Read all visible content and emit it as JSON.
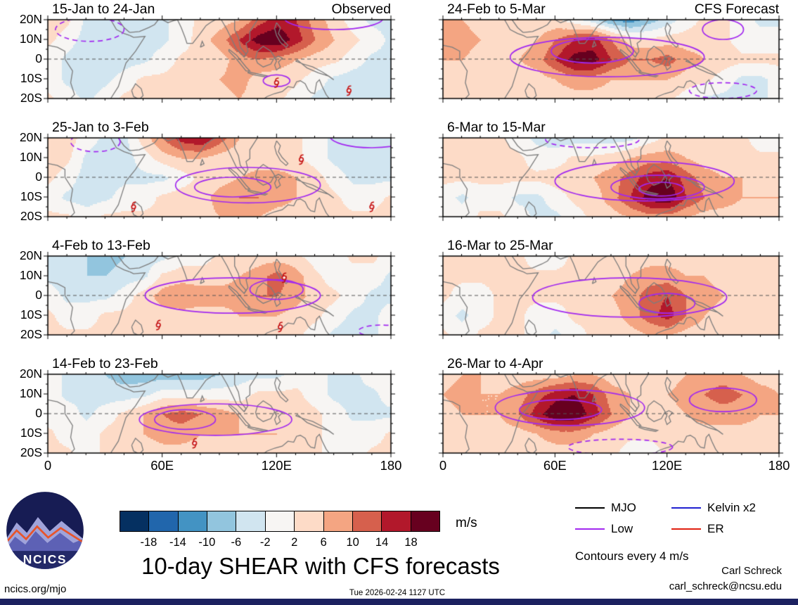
{
  "title": "10-day SHEAR with CFS forecasts",
  "axes": {
    "y_tick_labels": [
      "20N",
      "10N",
      "0",
      "10S",
      "20S"
    ],
    "x_tick_labels": [
      "0",
      "60E",
      "120E",
      "180"
    ]
  },
  "colorbar": {
    "tick_labels": [
      "-18",
      "-14",
      "-10",
      "-6",
      "-2",
      "2",
      "6",
      "10",
      "14",
      "18"
    ],
    "units": "m/s",
    "colors": [
      "#053061",
      "#2166ac",
      "#4393c3",
      "#92c5de",
      "#d1e5f0",
      "#f7f5f3",
      "#fddbc7",
      "#f4a582",
      "#d6604d",
      "#b2182b",
      "#67001f"
    ]
  },
  "legend": {
    "items": [
      {
        "label": "MJO",
        "color": "#000000"
      },
      {
        "label": "Kelvin x2",
        "color": "#2020d0"
      },
      {
        "label": "Low",
        "color": "#a228f0"
      },
      {
        "label": "ER",
        "color": "#e02010"
      }
    ],
    "note": "Contours every 4 m/s"
  },
  "footer": {
    "site": "ncics.org/mjo",
    "timestamp": "Tue 2026-02-24 1127 UTC",
    "credit_name": "Carl Schreck",
    "credit_email": "carl_schreck@ncsu.edu",
    "logo_text": "NCICS"
  },
  "chart_data": {
    "type": "heatmap",
    "units": "m/s",
    "lon_range": [
      0,
      180
    ],
    "lat_range": [
      -20,
      20
    ],
    "lon_step_deg": 10,
    "lat_step_deg": 10,
    "thresholds": [
      -18,
      -14,
      -10,
      -6,
      -2,
      2,
      6,
      10,
      14,
      18
    ],
    "contour_interval_mps": 4,
    "panels": [
      {
        "title": "15-Jan to 24-Jan",
        "corner_label": "Observed",
        "grid": [
          [
            4,
            3,
            -3,
            -4,
            -4,
            -3,
            -3,
            0,
            3,
            4,
            6,
            12,
            16,
            14,
            8,
            4,
            0,
            -3,
            -3
          ],
          [
            3,
            0,
            -4,
            -6,
            -6,
            -4,
            -3,
            0,
            4,
            8,
            14,
            20,
            22,
            16,
            10,
            6,
            3,
            0,
            -3
          ],
          [
            0,
            -3,
            -6,
            -6,
            -4,
            -3,
            0,
            3,
            3,
            4,
            8,
            10,
            8,
            6,
            4,
            3,
            0,
            -3,
            -3
          ],
          [
            0,
            -3,
            -4,
            -3,
            0,
            3,
            3,
            3,
            4,
            6,
            8,
            4,
            4,
            3,
            0,
            -3,
            -4,
            -4,
            -4
          ],
          [
            3,
            0,
            -3,
            0,
            3,
            3,
            3,
            4,
            4,
            4,
            6,
            4,
            3,
            0,
            -3,
            -4,
            -6,
            -4,
            -3
          ]
        ],
        "low_contours": [
          {
            "lon": 22,
            "lat": 15,
            "rlon": 18,
            "rlat": 6,
            "dashed": true
          },
          {
            "lon": 150,
            "lat": 21,
            "rlon": 26,
            "rlat": 6,
            "dashed": false
          },
          {
            "lon": 120,
            "lat": -11,
            "rlon": 7,
            "rlat": 3,
            "dashed": false
          }
        ],
        "storms": [
          [
            120,
            -12
          ],
          [
            158,
            -16
          ]
        ]
      },
      {
        "title": "25-Jan to 3-Feb",
        "corner_label": "",
        "grid": [
          [
            6,
            4,
            0,
            -3,
            -3,
            4,
            10,
            16,
            18,
            12,
            6,
            3,
            3,
            3,
            0,
            -3,
            -4,
            -4,
            -4
          ],
          [
            4,
            3,
            -3,
            -4,
            -4,
            0,
            4,
            6,
            6,
            4,
            3,
            3,
            3,
            3,
            0,
            -3,
            -4,
            -4,
            -3
          ],
          [
            3,
            0,
            -4,
            -4,
            -3,
            -3,
            -3,
            0,
            3,
            4,
            6,
            8,
            8,
            6,
            4,
            0,
            -3,
            -3,
            -3
          ],
          [
            0,
            -3,
            -4,
            -3,
            0,
            0,
            3,
            4,
            4,
            8,
            10,
            10,
            8,
            6,
            4,
            3,
            0,
            0,
            3
          ],
          [
            3,
            3,
            0,
            3,
            3,
            3,
            3,
            3,
            4,
            6,
            6,
            6,
            4,
            4,
            4,
            3,
            3,
            3,
            4
          ]
        ],
        "low_contours": [
          {
            "lon": 25,
            "lat": 18,
            "rlon": 13,
            "rlat": 5,
            "dashed": true
          },
          {
            "lon": 105,
            "lat": -4,
            "rlon": 38,
            "rlat": 9,
            "dashed": false
          },
          {
            "lon": 97,
            "lat": -5,
            "rlon": 20,
            "rlat": 5,
            "dashed": false
          },
          {
            "lon": 170,
            "lat": 21,
            "rlon": 22,
            "rlat": 6,
            "dashed": false
          }
        ],
        "storms": [
          [
            45,
            -15
          ],
          [
            133,
            9
          ],
          [
            170,
            -15
          ]
        ]
      },
      {
        "title": "4-Feb to 13-Feb",
        "corner_label": "",
        "grid": [
          [
            -3,
            -4,
            -6,
            -8,
            -6,
            -4,
            -3,
            0,
            0,
            3,
            3,
            4,
            4,
            3,
            0,
            0,
            3,
            3,
            0
          ],
          [
            -3,
            -4,
            -6,
            -6,
            -4,
            -3,
            3,
            4,
            4,
            4,
            6,
            8,
            12,
            8,
            3,
            0,
            0,
            0,
            -3
          ],
          [
            0,
            -3,
            -3,
            -3,
            0,
            4,
            8,
            10,
            8,
            8,
            8,
            10,
            10,
            8,
            4,
            3,
            0,
            -3,
            -3
          ],
          [
            3,
            0,
            0,
            3,
            3,
            4,
            4,
            4,
            4,
            4,
            6,
            6,
            6,
            4,
            3,
            0,
            -3,
            -3,
            0
          ],
          [
            3,
            3,
            3,
            3,
            3,
            3,
            3,
            3,
            3,
            4,
            4,
            4,
            3,
            3,
            0,
            -3,
            -4,
            -3,
            0
          ]
        ],
        "low_contours": [
          {
            "lon": 97,
            "lat": 0,
            "rlon": 46,
            "rlat": 9,
            "dashed": false
          },
          {
            "lon": 120,
            "lat": 3,
            "rlon": 14,
            "rlat": 5,
            "dashed": false
          },
          {
            "lon": 175,
            "lat": -18,
            "rlon": 12,
            "rlat": 3,
            "dashed": true
          }
        ],
        "storms": [
          [
            58,
            -15
          ],
          [
            124,
            9
          ],
          [
            122,
            -16
          ]
        ]
      },
      {
        "title": "14-Feb to 23-Feb",
        "corner_label": "",
        "grid": [
          [
            0,
            -3,
            -4,
            -6,
            -8,
            -8,
            -8,
            -8,
            -8,
            -6,
            -4,
            -3,
            -3,
            0,
            0,
            -3,
            -3,
            0,
            0
          ],
          [
            0,
            -3,
            -3,
            -4,
            -4,
            -3,
            0,
            0,
            0,
            0,
            0,
            3,
            3,
            3,
            0,
            -3,
            -3,
            -3,
            0
          ],
          [
            0,
            0,
            -3,
            0,
            3,
            6,
            10,
            12,
            10,
            8,
            6,
            4,
            4,
            4,
            3,
            0,
            -3,
            -3,
            -3
          ],
          [
            3,
            0,
            0,
            3,
            4,
            6,
            8,
            8,
            6,
            6,
            6,
            6,
            6,
            4,
            3,
            0,
            0,
            0,
            3
          ],
          [
            3,
            3,
            0,
            3,
            3,
            3,
            4,
            4,
            4,
            4,
            4,
            4,
            4,
            3,
            3,
            0,
            0,
            3,
            3
          ]
        ],
        "low_contours": [
          {
            "lon": 88,
            "lat": -3,
            "rlon": 40,
            "rlat": 8,
            "dashed": false
          },
          {
            "lon": 72,
            "lat": -3,
            "rlon": 16,
            "rlat": 5,
            "dashed": false
          }
        ],
        "storms": [
          [
            77,
            -15
          ]
        ]
      },
      {
        "title": "24-Feb to 5-Mar",
        "corner_label": "CFS Forecast",
        "grid": [
          [
            6,
            6,
            4,
            3,
            3,
            3,
            3,
            0,
            -4,
            -10,
            -12,
            -8,
            -4,
            0,
            3,
            3,
            0,
            -3,
            -3
          ],
          [
            8,
            8,
            6,
            4,
            4,
            6,
            10,
            14,
            16,
            10,
            4,
            3,
            4,
            4,
            4,
            3,
            0,
            0,
            0
          ],
          [
            6,
            6,
            4,
            4,
            6,
            8,
            14,
            20,
            20,
            14,
            10,
            10,
            12,
            8,
            6,
            4,
            3,
            3,
            3
          ],
          [
            4,
            3,
            3,
            3,
            3,
            4,
            6,
            8,
            8,
            6,
            6,
            6,
            6,
            4,
            3,
            0,
            -3,
            -3,
            0
          ],
          [
            3,
            3,
            3,
            3,
            3,
            3,
            4,
            4,
            4,
            4,
            3,
            3,
            3,
            0,
            -3,
            -3,
            -4,
            -3,
            0
          ]
        ],
        "low_contours": [
          {
            "lon": 88,
            "lat": 1,
            "rlon": 52,
            "rlat": 10,
            "dashed": false
          },
          {
            "lon": 80,
            "lat": 4,
            "rlon": 22,
            "rlat": 6,
            "dashed": false
          },
          {
            "lon": 150,
            "lat": -16,
            "rlon": 18,
            "rlat": 4,
            "dashed": true
          },
          {
            "lon": 150,
            "lat": 15,
            "rlon": 11,
            "rlat": 5,
            "dashed": false
          }
        ],
        "storms": []
      },
      {
        "title": "6-Mar to 15-Mar",
        "corner_label": "",
        "grid": [
          [
            4,
            6,
            4,
            3,
            0,
            -3,
            -4,
            -4,
            -4,
            -4,
            -3,
            0,
            3,
            3,
            3,
            3,
            3,
            0,
            0
          ],
          [
            4,
            4,
            4,
            3,
            3,
            0,
            0,
            3,
            3,
            4,
            6,
            8,
            8,
            6,
            4,
            4,
            3,
            3,
            3
          ],
          [
            3,
            3,
            3,
            3,
            3,
            3,
            4,
            4,
            6,
            8,
            12,
            16,
            18,
            12,
            8,
            6,
            6,
            4,
            4
          ],
          [
            0,
            -3,
            0,
            0,
            -3,
            -3,
            0,
            3,
            4,
            8,
            14,
            20,
            22,
            14,
            10,
            8,
            6,
            6,
            6
          ],
          [
            0,
            0,
            3,
            3,
            0,
            -3,
            -3,
            0,
            3,
            4,
            6,
            8,
            8,
            6,
            4,
            4,
            4,
            4,
            4
          ]
        ],
        "low_contours": [
          {
            "lon": 108,
            "lat": -2,
            "rlon": 48,
            "rlat": 10,
            "dashed": false
          },
          {
            "lon": 115,
            "lat": -5,
            "rlon": 25,
            "rlat": 6,
            "dashed": false
          },
          {
            "lon": 117,
            "lat": -6,
            "rlon": 12,
            "rlat": 3.5,
            "dashed": false
          },
          {
            "lon": 80,
            "lat": 19,
            "rlon": 25,
            "rlat": 4,
            "dashed": true
          }
        ],
        "storms": []
      },
      {
        "title": "16-Mar to 25-Mar",
        "corner_label": "",
        "grid": [
          [
            3,
            4,
            4,
            3,
            3,
            0,
            0,
            3,
            3,
            3,
            4,
            4,
            4,
            4,
            3,
            3,
            3,
            3,
            3
          ],
          [
            3,
            3,
            3,
            3,
            3,
            3,
            3,
            3,
            3,
            4,
            6,
            8,
            8,
            6,
            6,
            4,
            3,
            3,
            3
          ],
          [
            3,
            0,
            0,
            3,
            3,
            3,
            3,
            3,
            4,
            6,
            8,
            12,
            14,
            10,
            8,
            6,
            4,
            4,
            4
          ],
          [
            0,
            -3,
            0,
            3,
            3,
            0,
            0,
            3,
            3,
            4,
            8,
            12,
            16,
            10,
            6,
            4,
            4,
            4,
            4
          ],
          [
            3,
            0,
            3,
            3,
            3,
            0,
            -3,
            0,
            3,
            3,
            4,
            6,
            6,
            4,
            3,
            3,
            3,
            4,
            4
          ]
        ],
        "low_contours": [
          {
            "lon": 100,
            "lat": -1,
            "rlon": 52,
            "rlat": 10,
            "dashed": false
          },
          {
            "lon": 120,
            "lat": -4,
            "rlon": 15,
            "rlat": 5,
            "dashed": false
          }
        ],
        "storms": []
      },
      {
        "title": "26-Mar to 4-Apr",
        "corner_label": "",
        "grid": [
          [
            4,
            6,
            6,
            4,
            4,
            4,
            4,
            6,
            6,
            4,
            3,
            3,
            4,
            6,
            8,
            8,
            6,
            4,
            4
          ],
          [
            6,
            8,
            6,
            6,
            8,
            12,
            16,
            18,
            14,
            8,
            6,
            4,
            6,
            8,
            10,
            12,
            10,
            8,
            6
          ],
          [
            4,
            6,
            6,
            6,
            10,
            16,
            22,
            22,
            16,
            10,
            6,
            4,
            4,
            6,
            8,
            8,
            8,
            6,
            6
          ],
          [
            3,
            3,
            3,
            4,
            4,
            6,
            8,
            8,
            6,
            4,
            3,
            3,
            3,
            4,
            4,
            4,
            4,
            4,
            4
          ],
          [
            3,
            3,
            3,
            3,
            3,
            4,
            4,
            4,
            4,
            3,
            0,
            0,
            3,
            3,
            3,
            3,
            3,
            3,
            3
          ]
        ],
        "low_contours": [
          {
            "lon": 68,
            "lat": 3,
            "rlon": 40,
            "rlat": 9,
            "dashed": false
          },
          {
            "lon": 63,
            "lat": 2,
            "rlon": 22,
            "rlat": 5,
            "dashed": false
          },
          {
            "lon": 150,
            "lat": 7,
            "rlon": 18,
            "rlat": 6,
            "dashed": false
          },
          {
            "lon": 95,
            "lat": -17,
            "rlon": 28,
            "rlat": 4,
            "dashed": true
          }
        ],
        "storms": []
      }
    ]
  }
}
